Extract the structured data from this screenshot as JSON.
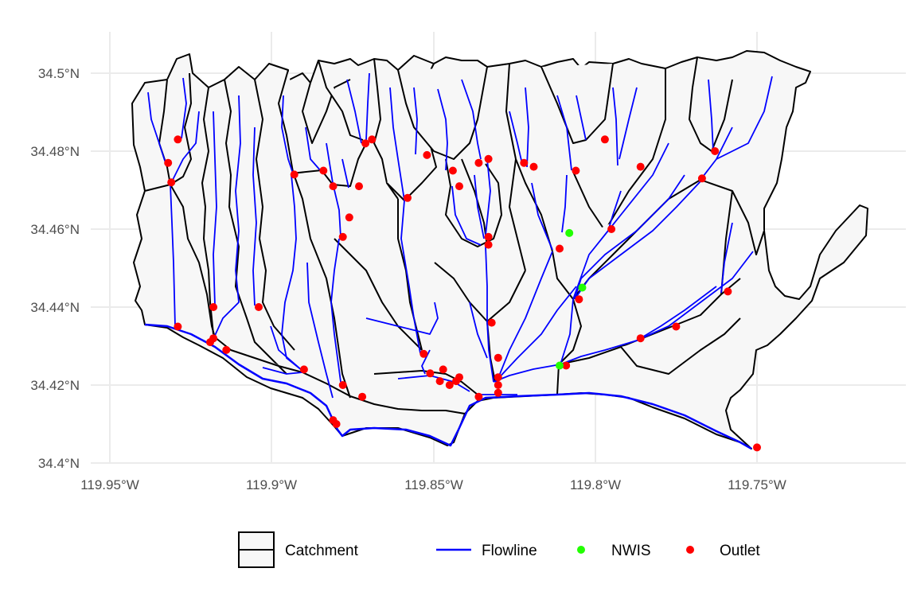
{
  "map": {
    "x_axis": {
      "ticks": [
        "119.95°W",
        "119.9°W",
        "119.85°W",
        "119.8°W",
        "119.75°W"
      ]
    },
    "y_axis": {
      "ticks": [
        "34.4°N",
        "34.42°N",
        "34.44°N",
        "34.46°N",
        "34.48°N",
        "34.5°N"
      ]
    },
    "legend": {
      "catchment": "Catchment",
      "flowline": "Flowline",
      "nwis": "NWIS",
      "outlet": "Outlet"
    },
    "colors": {
      "catchment_fill": "#f7f7f7",
      "catchment_stroke": "#000000",
      "flowline": "#0000ff",
      "nwis": "#22ff00",
      "outlet": "#ff0000",
      "grid": "#ebebeb"
    },
    "points": {
      "outlets": [
        [
          -119.929,
          34.483
        ],
        [
          -119.932,
          34.477
        ],
        [
          -119.931,
          34.472
        ],
        [
          -119.929,
          34.435
        ],
        [
          -119.918,
          34.44
        ],
        [
          -119.918,
          34.432
        ],
        [
          -119.919,
          34.431
        ],
        [
          -119.914,
          34.429
        ],
        [
          -119.904,
          34.44
        ],
        [
          -119.893,
          34.474
        ],
        [
          -119.884,
          34.475
        ],
        [
          -119.881,
          34.471
        ],
        [
          -119.873,
          34.471
        ],
        [
          -119.876,
          34.463
        ],
        [
          -119.878,
          34.458
        ],
        [
          -119.871,
          34.482
        ],
        [
          -119.869,
          34.483
        ],
        [
          -119.858,
          34.468
        ],
        [
          -119.852,
          34.479
        ],
        [
          -119.844,
          34.475
        ],
        [
          -119.842,
          34.471
        ],
        [
          -119.836,
          34.477
        ],
        [
          -119.833,
          34.478
        ],
        [
          -119.833,
          34.458
        ],
        [
          -119.833,
          34.456
        ],
        [
          -119.822,
          34.477
        ],
        [
          -119.819,
          34.476
        ],
        [
          -119.806,
          34.475
        ],
        [
          -119.797,
          34.483
        ],
        [
          -119.786,
          34.476
        ],
        [
          -119.763,
          34.48
        ],
        [
          -119.767,
          34.473
        ],
        [
          -119.811,
          34.455
        ],
        [
          -119.795,
          34.46
        ],
        [
          -119.805,
          34.442
        ],
        [
          -119.759,
          34.444
        ],
        [
          -119.775,
          34.435
        ],
        [
          -119.786,
          34.432
        ],
        [
          -119.809,
          34.425
        ],
        [
          -119.832,
          34.436
        ],
        [
          -119.83,
          34.427
        ],
        [
          -119.83,
          34.422
        ],
        [
          -119.83,
          34.42
        ],
        [
          -119.83,
          34.418
        ],
        [
          -119.836,
          34.417
        ],
        [
          -119.842,
          34.422
        ],
        [
          -119.843,
          34.421
        ],
        [
          -119.845,
          34.42
        ],
        [
          -119.848,
          34.421
        ],
        [
          -119.847,
          34.424
        ],
        [
          -119.851,
          34.423
        ],
        [
          -119.853,
          34.428
        ],
        [
          -119.89,
          34.424
        ],
        [
          -119.878,
          34.42
        ],
        [
          -119.872,
          34.417
        ],
        [
          -119.881,
          34.411
        ],
        [
          -119.88,
          34.41
        ],
        [
          -119.75,
          34.404
        ]
      ],
      "nwis": [
        [
          -119.808,
          34.459
        ],
        [
          -119.804,
          34.445
        ],
        [
          -119.811,
          34.425
        ]
      ]
    }
  }
}
